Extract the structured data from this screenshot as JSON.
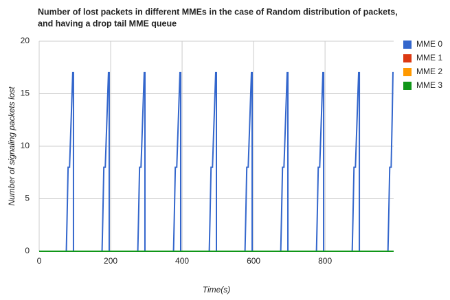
{
  "chart_data": {
    "type": "line",
    "title": [
      "Number of lost packets in different MMEs in the case of Random distribution of packets,",
      "and having a drop tail MME queue"
    ],
    "x_label": "Time(s)",
    "y_label": "Number of signaling packets lost",
    "series": [
      {
        "name": "MME 0",
        "color": "#3366cc",
        "x": [
          0,
          76,
          78,
          81,
          85,
          90,
          94,
          96,
          96,
          176,
          178,
          181,
          185,
          190,
          194,
          196,
          196,
          276,
          278,
          281,
          285,
          290,
          294,
          296,
          296,
          376,
          378,
          381,
          385,
          390,
          394,
          396,
          396,
          476,
          478,
          481,
          485,
          490,
          494,
          496,
          496,
          576,
          578,
          581,
          585,
          590,
          594,
          596,
          596,
          676,
          678,
          681,
          685,
          690,
          694,
          696,
          696,
          776,
          778,
          781,
          785,
          790,
          794,
          796,
          796,
          876,
          878,
          881,
          885,
          890,
          894,
          896,
          896,
          976,
          978,
          981,
          985,
          988,
          990,
          992
        ],
        "values": [
          0,
          0,
          3,
          8,
          8,
          13,
          17,
          17,
          0,
          0,
          3,
          8,
          8,
          13,
          17,
          17,
          0,
          0,
          3,
          8,
          8,
          13,
          17,
          17,
          0,
          0,
          3,
          8,
          8,
          13,
          17,
          17,
          0,
          0,
          3,
          8,
          8,
          13,
          17,
          17,
          0,
          0,
          3,
          8,
          8,
          13,
          17,
          17,
          0,
          0,
          3,
          8,
          8,
          13,
          17,
          17,
          0,
          0,
          3,
          8,
          8,
          13,
          17,
          17,
          0,
          0,
          3,
          8,
          8,
          13,
          17,
          17,
          0,
          0,
          3,
          8,
          8,
          13,
          17,
          17
        ]
      },
      {
        "name": "MME 1",
        "color": "#dc3912",
        "x": [
          0,
          992
        ],
        "values": [
          0,
          0
        ]
      },
      {
        "name": "MME 2",
        "color": "#ff9900",
        "x": [
          0,
          992
        ],
        "values": [
          0,
          0
        ]
      },
      {
        "name": "MME 3",
        "color": "#109618",
        "x": [
          0,
          992
        ],
        "values": [
          0,
          0
        ]
      }
    ],
    "xlim": [
      0,
      992
    ],
    "xticks": [
      0,
      200,
      400,
      600,
      800
    ],
    "ylim": [
      0,
      20
    ],
    "yticks": [
      0,
      5,
      10,
      15,
      20
    ],
    "grid": true,
    "legend": "right"
  }
}
